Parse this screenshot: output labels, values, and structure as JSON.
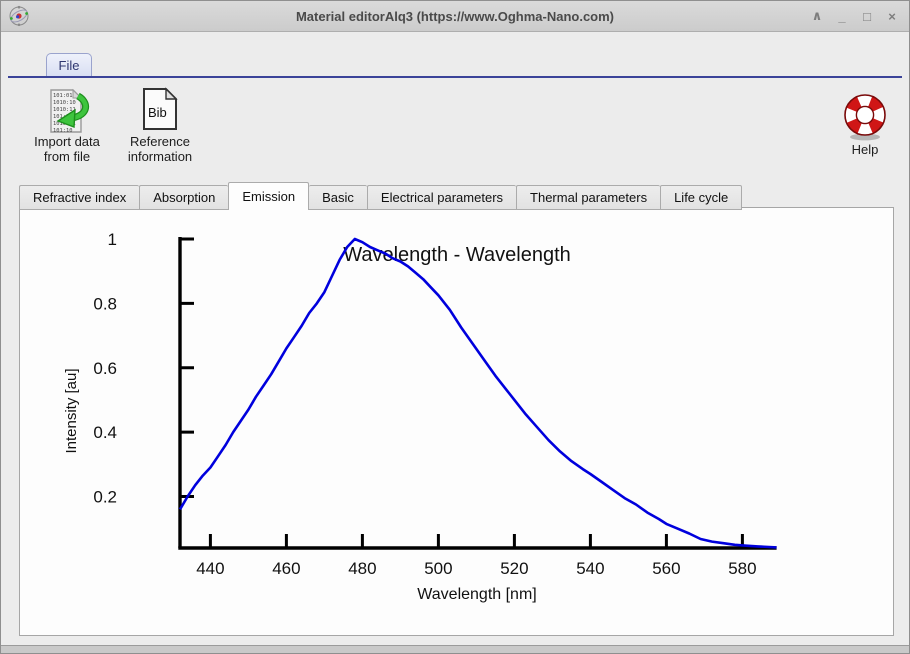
{
  "window": {
    "title": "Material editorAlq3 (https://www.Oghma-Nano.com)",
    "controls": [
      {
        "name": "shade",
        "glyph": "∧"
      },
      {
        "name": "minimize",
        "glyph": "_"
      },
      {
        "name": "maximize",
        "glyph": "□"
      },
      {
        "name": "close",
        "glyph": "×"
      }
    ]
  },
  "ribbon": {
    "file_tab_label": "File"
  },
  "toolbar": {
    "import_button": {
      "label_line1": "Import data",
      "label_line2": "from file"
    },
    "reference_button": {
      "label_line1": "Reference",
      "label_line2": "information",
      "icon_text": "Bib"
    },
    "help_button": {
      "label": "Help"
    }
  },
  "icons": {
    "window_icon": "atom-logo",
    "import_icon": "binary-document-with-green-import-arrow",
    "reference_icon": "bibtex-document",
    "help_icon": "red-lifebuoy"
  },
  "tab_bar": {
    "active_tab": "Emission",
    "tabs": [
      {
        "label": "Refractive index"
      },
      {
        "label": "Absorption"
      },
      {
        "label": "Emission"
      },
      {
        "label": "Basic"
      },
      {
        "label": "Electrical parameters"
      },
      {
        "label": "Thermal parameters"
      },
      {
        "label": "Life cycle"
      }
    ]
  },
  "chart_data": {
    "type": "line",
    "title": "Wavelength - Wavelength",
    "xlabel": "Wavelength [nm]",
    "ylabel": "Intensity [au]",
    "xlim": [
      432,
      589
    ],
    "ylim": [
      0.04,
      1.0
    ],
    "xticks": [
      440,
      460,
      480,
      500,
      520,
      540,
      560,
      580
    ],
    "yticks": [
      0.2,
      0.4,
      0.6,
      0.8,
      1
    ],
    "grid": false,
    "legend": "none",
    "line_color": "#0000dd",
    "series": [
      {
        "name": "emission-intensity",
        "points": [
          [
            432,
            0.16
          ],
          [
            434,
            0.2
          ],
          [
            436,
            0.235
          ],
          [
            438,
            0.265
          ],
          [
            440,
            0.29
          ],
          [
            442,
            0.325
          ],
          [
            444,
            0.36
          ],
          [
            446,
            0.4
          ],
          [
            448,
            0.435
          ],
          [
            450,
            0.47
          ],
          [
            452,
            0.51
          ],
          [
            454,
            0.545
          ],
          [
            456,
            0.58
          ],
          [
            458,
            0.62
          ],
          [
            460,
            0.66
          ],
          [
            462,
            0.695
          ],
          [
            464,
            0.73
          ],
          [
            466,
            0.77
          ],
          [
            468,
            0.8
          ],
          [
            470,
            0.835
          ],
          [
            472,
            0.885
          ],
          [
            474,
            0.935
          ],
          [
            476,
            0.975
          ],
          [
            478,
            1.0
          ],
          [
            480,
            0.99
          ],
          [
            482,
            0.975
          ],
          [
            484,
            0.965
          ],
          [
            486,
            0.955
          ],
          [
            488,
            0.94
          ],
          [
            490,
            0.93
          ],
          [
            492,
            0.915
          ],
          [
            494,
            0.895
          ],
          [
            496,
            0.875
          ],
          [
            498,
            0.85
          ],
          [
            500,
            0.825
          ],
          [
            503,
            0.78
          ],
          [
            506,
            0.725
          ],
          [
            509,
            0.675
          ],
          [
            512,
            0.625
          ],
          [
            515,
            0.575
          ],
          [
            518,
            0.53
          ],
          [
            520,
            0.5
          ],
          [
            523,
            0.455
          ],
          [
            526,
            0.415
          ],
          [
            529,
            0.375
          ],
          [
            532,
            0.34
          ],
          [
            535,
            0.31
          ],
          [
            538,
            0.285
          ],
          [
            540,
            0.27
          ],
          [
            543,
            0.245
          ],
          [
            546,
            0.22
          ],
          [
            549,
            0.195
          ],
          [
            552,
            0.175
          ],
          [
            555,
            0.15
          ],
          [
            558,
            0.13
          ],
          [
            560,
            0.115
          ],
          [
            563,
            0.1
          ],
          [
            566,
            0.085
          ],
          [
            569,
            0.068
          ],
          [
            572,
            0.06
          ],
          [
            575,
            0.055
          ],
          [
            578,
            0.05
          ],
          [
            581,
            0.047
          ],
          [
            584,
            0.045
          ],
          [
            587,
            0.043
          ],
          [
            589,
            0.042
          ]
        ]
      }
    ]
  }
}
